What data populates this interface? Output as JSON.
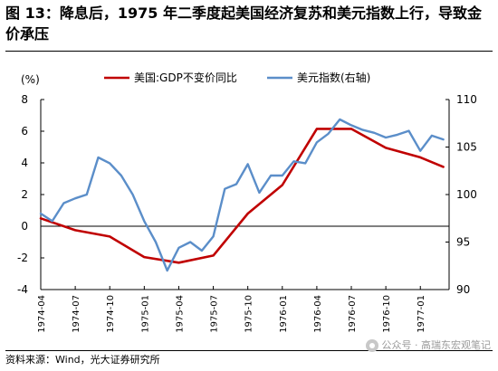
{
  "figure": {
    "title": "图 13：降息后，1975 年二季度起美国经济复苏和美元指数上行，导致金价承压",
    "source": "资料来源：Wind，光大证券研究所",
    "watermark": "公众号 · 高瑞东宏观笔记"
  },
  "chart_data": {
    "type": "line",
    "title": "",
    "unit_label": "(%)",
    "xlabel": "",
    "ylabel": "",
    "x_tick_labels": [
      "1974-04",
      "1974-07",
      "1974-10",
      "1975-01",
      "1975-04",
      "1975-07",
      "1975-10",
      "1976-01",
      "1976-04",
      "1976-07",
      "1976-10",
      "1977-01"
    ],
    "left_axis": {
      "range": [
        -4,
        8
      ],
      "ticks": [
        "-4",
        "-2",
        "0",
        "2",
        "4",
        "6",
        "8"
      ]
    },
    "right_axis": {
      "range": [
        90,
        110
      ],
      "ticks": [
        "90",
        "95",
        "100",
        "105",
        "110"
      ]
    },
    "grid": false,
    "legend_position": "top",
    "series": [
      {
        "name": "美国:GDP不变价同比",
        "axis": "left",
        "color": "#c00000",
        "points": [
          [
            "1974-04",
            0.5
          ],
          [
            "1974-07",
            -0.25
          ],
          [
            "1974-10",
            -0.65
          ],
          [
            "1975-01",
            -1.95
          ],
          [
            "1975-04",
            -2.3
          ],
          [
            "1975-07",
            -1.85
          ],
          [
            "1975-10",
            0.8
          ],
          [
            "1976-01",
            2.6
          ],
          [
            "1976-04",
            6.15
          ],
          [
            "1976-07",
            6.15
          ],
          [
            "1976-10",
            4.95
          ],
          [
            "1977-01",
            4.35
          ],
          [
            "1977-03",
            3.75
          ]
        ]
      },
      {
        "name": "美元指数(右轴)",
        "axis": "right",
        "color": "#5b8ec9",
        "points": [
          [
            "1974-04",
            98.0
          ],
          [
            "1974-05",
            97.2
          ],
          [
            "1974-06",
            99.1
          ],
          [
            "1974-07",
            99.6
          ],
          [
            "1974-08",
            100.0
          ],
          [
            "1974-09",
            103.9
          ],
          [
            "1974-10",
            103.3
          ],
          [
            "1974-11",
            102.0
          ],
          [
            "1974-12",
            100.0
          ],
          [
            "1975-01",
            97.2
          ],
          [
            "1975-02",
            95.0
          ],
          [
            "1975-03",
            92.0
          ],
          [
            "1975-04",
            94.4
          ],
          [
            "1975-05",
            95.0
          ],
          [
            "1975-06",
            94.1
          ],
          [
            "1975-07",
            95.6
          ],
          [
            "1975-08",
            100.6
          ],
          [
            "1975-09",
            101.1
          ],
          [
            "1975-10",
            103.2
          ],
          [
            "1975-11",
            100.2
          ],
          [
            "1975-12",
            102.0
          ],
          [
            "1976-01",
            102.0
          ],
          [
            "1976-02",
            103.5
          ],
          [
            "1976-03",
            103.3
          ],
          [
            "1976-04",
            105.5
          ],
          [
            "1976-05",
            106.4
          ],
          [
            "1976-06",
            107.9
          ],
          [
            "1976-07",
            107.3
          ],
          [
            "1976-08",
            106.8
          ],
          [
            "1976-09",
            106.5
          ],
          [
            "1976-10",
            106.0
          ],
          [
            "1976-11",
            106.3
          ],
          [
            "1976-12",
            106.7
          ],
          [
            "1977-01",
            104.6
          ],
          [
            "1977-02",
            106.2
          ],
          [
            "1977-03",
            105.8
          ]
        ]
      }
    ]
  }
}
